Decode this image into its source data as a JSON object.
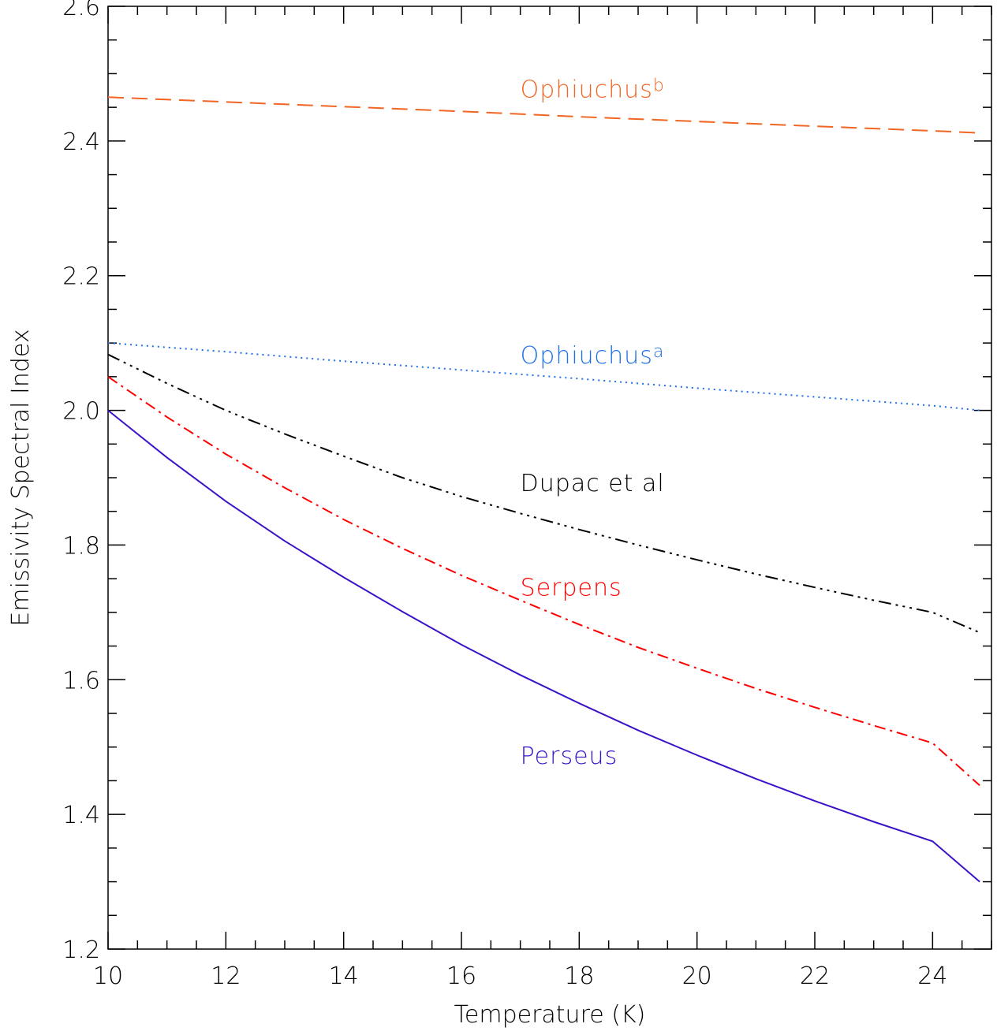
{
  "chart_data": {
    "type": "line",
    "title": "",
    "xlabel": "Temperature (K)",
    "ylabel": "Emissivity Spectral Index",
    "xlim": [
      10,
      25
    ],
    "ylim": [
      1.2,
      2.6
    ],
    "x_ticks": [
      "10",
      "12",
      "14",
      "16",
      "18",
      "20",
      "22",
      "24"
    ],
    "y_ticks": [
      "1.2",
      "1.4",
      "1.6",
      "1.8",
      "2.0",
      "2.2",
      "2.4",
      "2.6"
    ],
    "grid": false,
    "legend": "none",
    "series": [
      {
        "name": "Ophiuchusᵇ",
        "label_main": "Ophiuchus",
        "label_sup": "b",
        "color": "#f26522",
        "style": "dashed",
        "label_at": [
          17,
          2.465
        ],
        "x": [
          10,
          12,
          14,
          16,
          18,
          20,
          22,
          24,
          24.8
        ],
        "y": [
          2.465,
          2.458,
          2.451,
          2.444,
          2.436,
          2.429,
          2.422,
          2.415,
          2.412
        ]
      },
      {
        "name": "Ophiuchusᵃ",
        "label_main": "Ophiuchus",
        "label_sup": "a",
        "color": "#1e6fe8",
        "style": "dotted",
        "label_at": [
          17,
          2.07
        ],
        "x": [
          10,
          12,
          14,
          16,
          18,
          20,
          22,
          24,
          24.8
        ],
        "y": [
          2.1,
          2.087,
          2.073,
          2.06,
          2.047,
          2.033,
          2.02,
          2.007,
          2.0
        ]
      },
      {
        "name": "Dupac et al",
        "label_main": "Dupac et al",
        "label_sup": "",
        "color": "#000000",
        "style": "dashdotdotdot",
        "label_at": [
          17,
          1.88
        ],
        "x": [
          10,
          11,
          12,
          13,
          14,
          15,
          16,
          17,
          18,
          19,
          20,
          21,
          22,
          23,
          24,
          24.8
        ],
        "y": [
          2.083,
          2.04,
          2.0,
          1.965,
          1.932,
          1.9,
          1.872,
          1.847,
          1.823,
          1.8,
          1.778,
          1.757,
          1.737,
          1.718,
          1.7,
          1.67
        ]
      },
      {
        "name": "Serpens",
        "label_main": "Serpens",
        "label_sup": "",
        "color": "#ff0000",
        "style": "dashdot",
        "label_at": [
          17,
          1.725
        ],
        "x": [
          10,
          11,
          12,
          13,
          14,
          15,
          16,
          17,
          18,
          19,
          20,
          21,
          22,
          23,
          24,
          24.8
        ],
        "y": [
          2.05,
          1.99,
          1.935,
          1.885,
          1.838,
          1.795,
          1.755,
          1.718,
          1.682,
          1.648,
          1.617,
          1.587,
          1.559,
          1.532,
          1.506,
          1.443
        ]
      },
      {
        "name": "Perseus",
        "label_main": "Perseus",
        "label_sup": "",
        "color": "#3b12c8",
        "style": "solid",
        "label_at": [
          17,
          1.475
        ],
        "x": [
          10,
          11,
          12,
          13,
          14,
          15,
          16,
          17,
          18,
          19,
          20,
          21,
          22,
          23,
          24,
          24.8
        ],
        "y": [
          2.0,
          1.93,
          1.865,
          1.806,
          1.752,
          1.701,
          1.652,
          1.607,
          1.565,
          1.525,
          1.488,
          1.453,
          1.42,
          1.389,
          1.36,
          1.3
        ]
      }
    ]
  }
}
